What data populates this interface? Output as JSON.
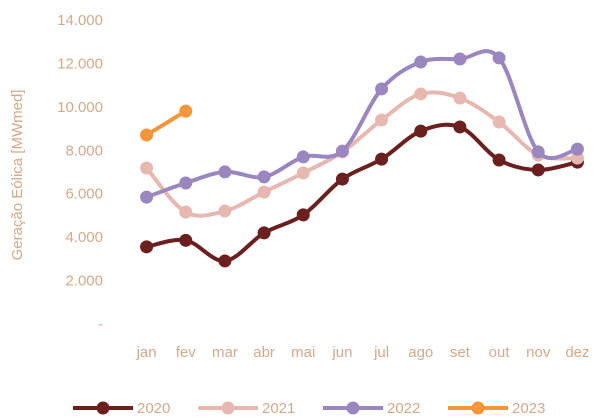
{
  "chart_data": {
    "type": "line",
    "y_label": "Geração Eólica [MWmed]",
    "categories": [
      "jan",
      "fev",
      "mar",
      "abr",
      "mai",
      "jun",
      "jul",
      "ago",
      "set",
      "out",
      "nov",
      "dez"
    ],
    "series": [
      {
        "name": "2020",
        "color": "#6b1f1f",
        "values": [
          3600,
          3900,
          2950,
          4240,
          5070,
          6720,
          7640,
          8930,
          9120,
          7600,
          7140,
          7500
        ]
      },
      {
        "name": "2021",
        "color": "#e6b8b0",
        "values": [
          7230,
          5200,
          5250,
          6120,
          7000,
          7970,
          9440,
          10640,
          10450,
          9350,
          7830,
          7690
        ]
      },
      {
        "name": "2022",
        "color": "#9b87c0",
        "values": [
          5890,
          6540,
          7050,
          6820,
          7740,
          8010,
          10870,
          12110,
          12250,
          12300,
          7970,
          8100
        ]
      },
      {
        "name": "2023",
        "color": "#f5963a",
        "values": [
          8750,
          9850,
          null,
          null,
          null,
          null,
          null,
          null,
          null,
          null,
          null,
          null
        ]
      }
    ],
    "ylim": [
      0,
      14000
    ],
    "yticks": [
      {
        "value": 0,
        "label": "-"
      },
      {
        "value": 2000,
        "label": "2.000"
      },
      {
        "value": 4000,
        "label": "4.000"
      },
      {
        "value": 6000,
        "label": "6.000"
      },
      {
        "value": 8000,
        "label": "8.000"
      },
      {
        "value": 10000,
        "label": "10.000"
      },
      {
        "value": 12000,
        "label": "12.000"
      },
      {
        "value": 14000,
        "label": "14.000"
      }
    ],
    "legend": "bottom"
  }
}
